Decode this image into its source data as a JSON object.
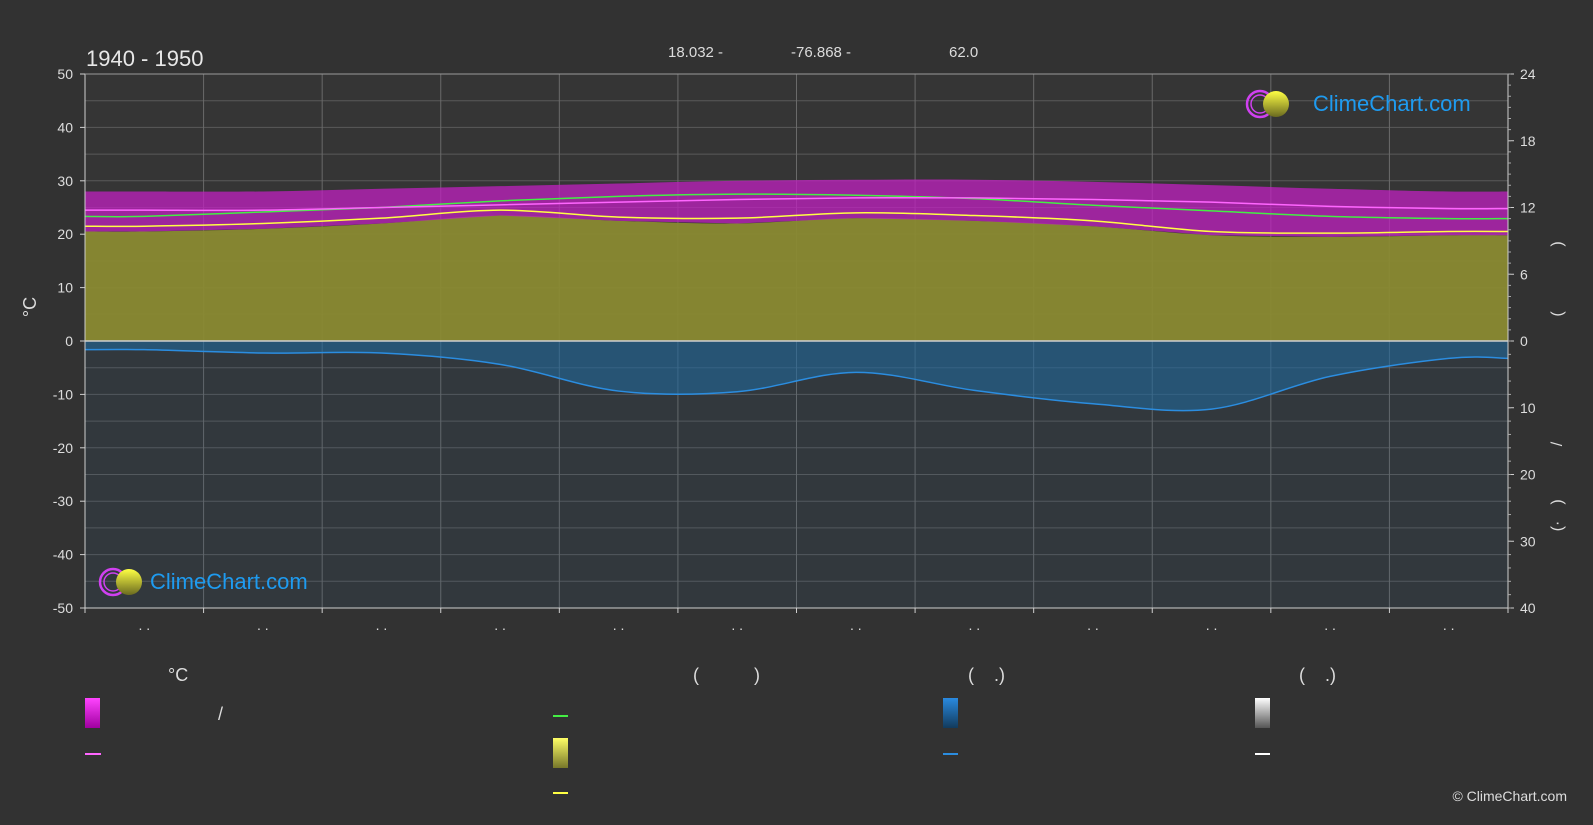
{
  "header": {
    "years": "1940 - 1950",
    "lat": "18.032 -",
    "lon": "-76.868 -",
    "elev": "62.0"
  },
  "chart_data": {
    "type": "area",
    "x_ticks": ". .|. .|. .|. .|. .|. .|. .|. .|. .|. .|. .|. .",
    "left_axis": {
      "label": "°C",
      "ylim": [
        -50,
        50
      ],
      "ticks": [
        50,
        40,
        30,
        20,
        10,
        0,
        -10,
        -20,
        -30,
        -40,
        -50
      ]
    },
    "right_axis_top": {
      "ticks": [
        24,
        18,
        12,
        6,
        0
      ],
      "label_glyphs": [
        ")",
        "("
      ]
    },
    "right_axis_bottom": {
      "ticks": [
        0,
        10,
        20,
        30,
        40
      ],
      "label_glyphs": [
        "/",
        ")",
        "(·"
      ]
    },
    "series": [
      {
        "key": "temp_max_mean",
        "color": "#ff66ff",
        "values": [
          24.5,
          24.5,
          25.0,
          25.5,
          26.0,
          26.5,
          26.8,
          26.8,
          26.5,
          26.0,
          25.2,
          24.8
        ]
      },
      {
        "key": "temp_min_mean",
        "color": "#ffff44",
        "values": [
          21.5,
          22.0,
          23.0,
          24.5,
          23.2,
          23.0,
          24.0,
          23.5,
          22.5,
          20.5,
          20.2,
          20.5
        ]
      },
      {
        "key": "daylight",
        "color": "#44ee44",
        "axis": "right_top",
        "values": [
          11.2,
          11.6,
          12.0,
          12.6,
          13.0,
          13.2,
          13.1,
          12.8,
          12.2,
          11.7,
          11.2,
          11.0
        ]
      },
      {
        "key": "precipitation",
        "color": "#2b8de0",
        "axis": "right_bottom",
        "values": [
          1.3,
          1.8,
          1.8,
          3.5,
          7.5,
          7.6,
          4.7,
          7.4,
          9.4,
          10.2,
          5.3,
          2.6
        ]
      }
    ],
    "temp_band": {
      "top": [
        28.0,
        28.0,
        28.5,
        29.0,
        29.5,
        30.0,
        30.2,
        30.2,
        29.8,
        29.2,
        28.5,
        28.0
      ],
      "bottom": [
        20.5,
        21.0,
        22.0,
        23.5,
        22.5,
        22.0,
        23.0,
        22.5,
        21.5,
        19.8,
        19.5,
        19.8
      ]
    }
  },
  "logos": {
    "top": "ClimeChart.com",
    "bottom": "ClimeChart.com"
  },
  "legend": {
    "col1_head": "°C",
    "col1_slash": "/",
    "col2_head": "(           )",
    "col3_head": "(    .)",
    "col4_head": "(    .)"
  },
  "copyright": "© ClimeChart.com",
  "colors": {
    "bg": "#323232",
    "magenta": "#e020e0",
    "olive": "#8a8a32",
    "blue": "#1e6fa8",
    "grid": "#5a5a5a"
  }
}
